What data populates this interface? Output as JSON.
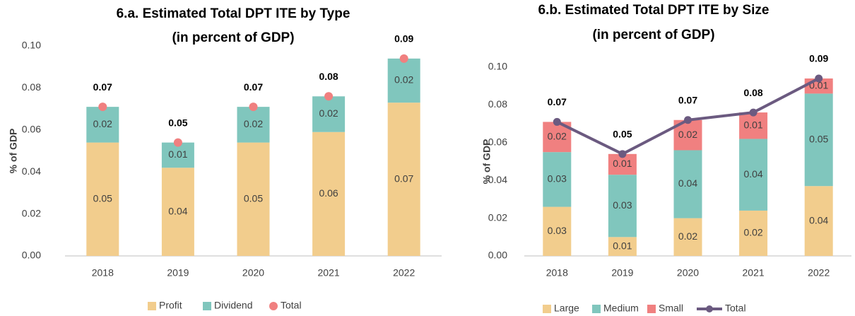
{
  "chart_data": [
    {
      "type": "bar",
      "title": "6.a. Estimated Total DPT ITE by Type",
      "subtitle": "(in percent of GDP)",
      "y_label": "% of GDP",
      "categories": [
        "2018",
        "2019",
        "2020",
        "2021",
        "2022"
      ],
      "ylim": [
        0,
        0.1
      ],
      "yticks": [
        {
          "value": 0,
          "label": "0.00"
        },
        0.02,
        0.04,
        0.06,
        0.08,
        {
          "value": 0.1,
          "label": "0.10"
        }
      ],
      "stacked": true,
      "grid": false,
      "legend": "bottom",
      "series": [
        {
          "name": "Profit",
          "color": "#f2cd8d",
          "style": "bar",
          "values": [
            0.054,
            0.042,
            0.054,
            0.059,
            0.073
          ],
          "value_labels": [
            "0.05",
            "0.04",
            "0.05",
            "0.06",
            "0.07"
          ]
        },
        {
          "name": "Dividend",
          "color": "#80c6bd",
          "style": "bar",
          "values": [
            0.017,
            0.012,
            0.017,
            0.017,
            0.021
          ],
          "value_labels": [
            "0.02",
            "0.01",
            "0.02",
            "0.02",
            "0.02"
          ]
        },
        {
          "name": "Total",
          "color": "#f08080",
          "style": "dot",
          "values": [
            0.071,
            0.054,
            0.071,
            0.076,
            0.094
          ],
          "value_labels": [
            "0.07",
            "0.05",
            "0.07",
            "0.08",
            "0.09"
          ]
        }
      ]
    },
    {
      "type": "bar",
      "title": "6.b. Estimated Total DPT ITE by Size",
      "subtitle": "(in percent of GDP)",
      "y_label": "% of GDP",
      "categories": [
        "2018",
        "2019",
        "2020",
        "2021",
        "2022"
      ],
      "ylim": [
        0,
        0.1
      ],
      "yticks": [
        {
          "value": 0,
          "label": "0.00"
        },
        0.02,
        0.04,
        0.06,
        0.08,
        {
          "value": 0.1,
          "label": "0.10"
        }
      ],
      "stacked": true,
      "grid": false,
      "legend": "bottom",
      "series": [
        {
          "name": "Large",
          "color": "#f2cd8d",
          "style": "bar",
          "values": [
            0.026,
            0.01,
            0.02,
            0.024,
            0.037
          ],
          "value_labels": [
            "0.03",
            "0.01",
            "0.02",
            "0.02",
            "0.04"
          ]
        },
        {
          "name": "Medium",
          "color": "#80c6bd",
          "style": "bar",
          "values": [
            0.029,
            0.033,
            0.036,
            0.038,
            0.049
          ],
          "value_labels": [
            "0.03",
            "0.03",
            "0.04",
            "0.04",
            "0.05"
          ]
        },
        {
          "name": "Small",
          "color": "#f08080",
          "style": "bar",
          "values": [
            0.016,
            0.011,
            0.016,
            0.014,
            0.008
          ],
          "value_labels": [
            "0.02",
            "0.01",
            "0.02",
            "0.01",
            "0.01"
          ]
        },
        {
          "name": "Total",
          "color": "#6b5a80",
          "style": "line",
          "values": [
            0.071,
            0.054,
            0.072,
            0.076,
            0.094
          ],
          "value_labels": [
            "0.07",
            "0.05",
            "0.07",
            "0.08",
            "0.09"
          ]
        }
      ]
    }
  ]
}
